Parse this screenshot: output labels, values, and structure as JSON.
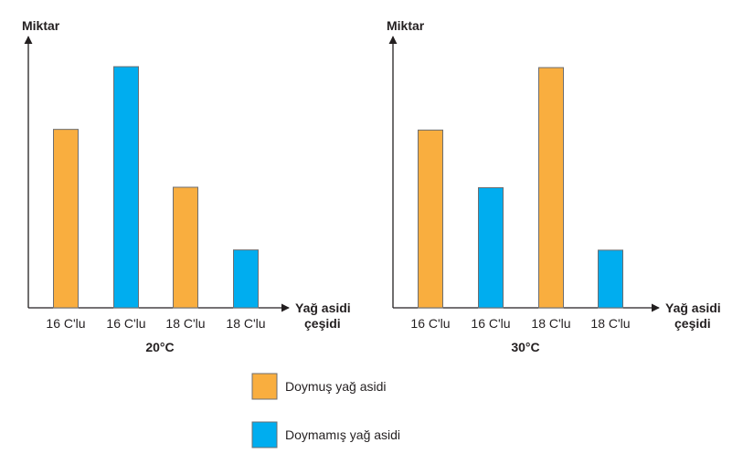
{
  "colors": {
    "saturated": "#f9ae3f",
    "unsaturated": "#00adef",
    "bar_stroke": "#6d6e71",
    "axis": "#231f20"
  },
  "legend": [
    {
      "key": "saturated",
      "label": "Doymuş yağ asidi"
    },
    {
      "key": "unsaturated",
      "label": "Doymamış yağ asidi"
    }
  ],
  "chart_data": [
    {
      "type": "bar",
      "title": "20°C",
      "ylabel": "Miktar",
      "xlabel_line1": "Yağ asidi",
      "xlabel_line2": "çeşidi",
      "ylim": [
        0,
        10
      ],
      "categories": [
        "16 C'lu",
        "16 C'lu",
        "18 C'lu",
        "18 C'lu"
      ],
      "values": [
        7.4,
        10.0,
        5.0,
        2.4
      ],
      "bar_kinds": [
        "saturated",
        "unsaturated",
        "saturated",
        "unsaturated"
      ]
    },
    {
      "type": "bar",
      "title": "30°C",
      "ylabel": "Miktar",
      "xlabel_line1": "Yağ asidi",
      "xlabel_line2": "çeşidi",
      "ylim": [
        0,
        10
      ],
      "categories": [
        "16 C'lu",
        "16 C'lu",
        "18 C'lu",
        "18 C'lu"
      ],
      "values": [
        7.4,
        5.0,
        10.0,
        2.4
      ],
      "bar_kinds": [
        "saturated",
        "unsaturated",
        "saturated",
        "unsaturated"
      ]
    }
  ]
}
